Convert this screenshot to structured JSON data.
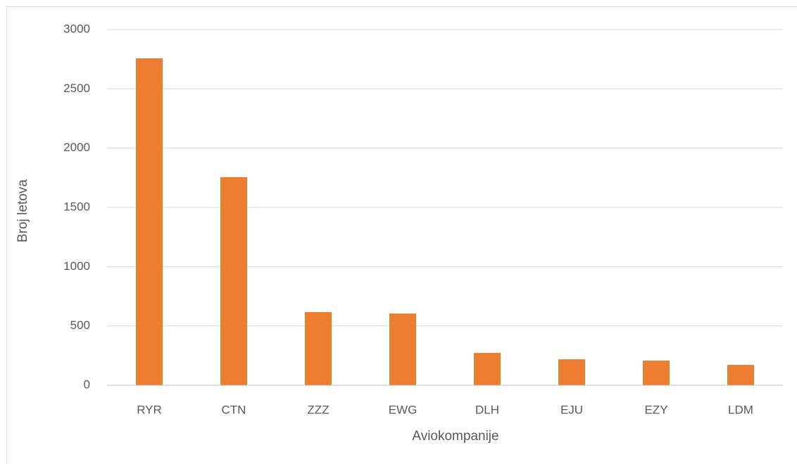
{
  "chart_data": {
    "type": "bar",
    "x_label": "Aviokompanije",
    "y_label": "Broj letova",
    "categories": [
      "RYR",
      "CTN",
      "ZZZ",
      "EWG",
      "DLH",
      "EJU",
      "EZY",
      "LDM"
    ],
    "values": [
      2757,
      1755,
      617,
      605,
      273,
      219,
      208,
      172
    ],
    "color": "#ed7d31",
    "ylim": [
      0,
      3000
    ],
    "yticks": [
      0,
      500,
      1000,
      1500,
      2000,
      2500,
      3000
    ],
    "grid": true
  }
}
